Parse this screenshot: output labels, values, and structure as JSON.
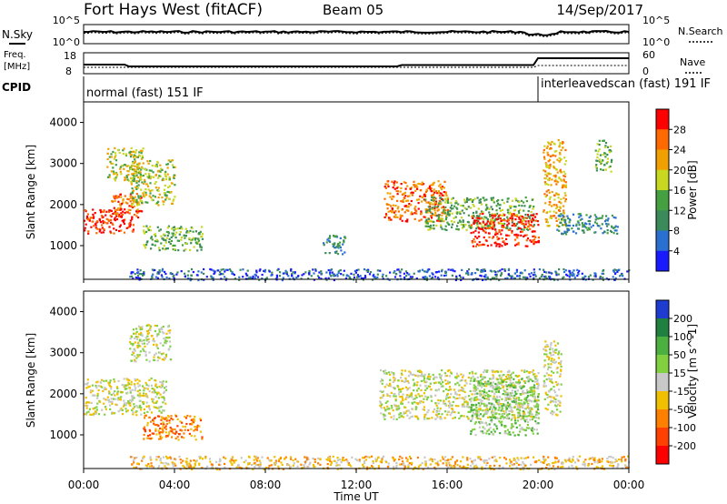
{
  "header": {
    "title": "Fort Hays West (fitACF)",
    "beam": "Beam 05",
    "date": "14/Sep/2017"
  },
  "top_strip": {
    "nsky": {
      "left_label": "N.Sky",
      "left_ticks": [
        "10^5",
        "10^0"
      ],
      "right_label": "N.Search",
      "right_ticks": [
        "10^5",
        "10^0"
      ]
    },
    "freq": {
      "left_label_1": "Freq.",
      "left_label_2": "[MHz]",
      "left_ticks": [
        "18",
        "8"
      ],
      "right_label": "Nave",
      "right_ticks": [
        "60",
        "0"
      ]
    },
    "cpid": {
      "label": "CPID",
      "segments": [
        {
          "start_hour": 0,
          "end_hour": 20,
          "text": "normal (fast) 151 IF"
        },
        {
          "start_hour": 20,
          "end_hour": 24,
          "text": "interleavedscan (fast) 191 IF"
        }
      ]
    }
  },
  "x_axis": {
    "label": "Time UT",
    "ticks": [
      "00:00",
      "04:00",
      "08:00",
      "12:00",
      "16:00",
      "20:00",
      "00:00"
    ],
    "range_hours": [
      0,
      24
    ]
  },
  "y_axis": {
    "label": "Slant Range [km]",
    "ticks": [
      "1000",
      "2000",
      "3000",
      "4000"
    ],
    "range": [
      180,
      4500
    ]
  },
  "chart_data": [
    {
      "type": "heatmap",
      "title": "",
      "xlabel": "",
      "ylabel": "Slant Range [km]",
      "xlim": [
        0,
        24
      ],
      "ylim": [
        180,
        4500
      ],
      "colorbar": {
        "label": "Power [dB]",
        "ticks": [
          "4",
          "8",
          "12",
          "16",
          "20",
          "24",
          "28"
        ],
        "colors": [
          "#1a1aff",
          "#2a70d0",
          "#3a8a5a",
          "#44a040",
          "#c8d820",
          "#f0a000",
          "#ff6a00",
          "#ff0000"
        ]
      },
      "regions": [
        {
          "x": [
            0.0,
            2.2
          ],
          "y": [
            1300,
            1900
          ],
          "level": 7
        },
        {
          "x": [
            1.2,
            2.6
          ],
          "y": [
            1700,
            2300
          ],
          "level": 6
        },
        {
          "x": [
            1.0,
            2.6
          ],
          "y": [
            2600,
            3400
          ],
          "level": 4
        },
        {
          "x": [
            2.0,
            4.0
          ],
          "y": [
            2000,
            3100
          ],
          "level": 4
        },
        {
          "x": [
            2.6,
            5.2
          ],
          "y": [
            900,
            1500
          ],
          "level": 3
        },
        {
          "x": [
            10.5,
            11.5
          ],
          "y": [
            800,
            1300
          ],
          "level": 2
        },
        {
          "x": [
            13.2,
            16.0
          ],
          "y": [
            1600,
            2600
          ],
          "level": 6
        },
        {
          "x": [
            15.0,
            19.8
          ],
          "y": [
            1400,
            2200
          ],
          "level": 3
        },
        {
          "x": [
            17.0,
            20.0
          ],
          "y": [
            1000,
            1800
          ],
          "level": 7
        },
        {
          "x": [
            20.2,
            21.2
          ],
          "y": [
            1500,
            3600
          ],
          "level": 5
        },
        {
          "x": [
            20.8,
            23.5
          ],
          "y": [
            1300,
            1800
          ],
          "level": 2
        },
        {
          "x": [
            22.5,
            23.2
          ],
          "y": [
            2800,
            3600
          ],
          "level": 3
        },
        {
          "x": [
            2.0,
            24.0
          ],
          "y": [
            180,
            450
          ],
          "level": 1
        }
      ]
    },
    {
      "type": "heatmap",
      "title": "",
      "xlabel": "Time UT",
      "ylabel": "Slant Range [km]",
      "xlim": [
        0,
        24
      ],
      "ylim": [
        180,
        4500
      ],
      "colorbar": {
        "label": "Velocity [m s^-1]",
        "ticks": [
          "200",
          "100",
          "50",
          "15",
          "-15",
          "-50",
          "-100",
          "-200"
        ],
        "colors": [
          "#1e3cd0",
          "#1f8040",
          "#4cb040",
          "#80d040",
          "#c8c8c8",
          "#f0c000",
          "#ff8000",
          "#ff4000",
          "#ff0000"
        ]
      },
      "regions": [
        {
          "x": [
            0.0,
            3.6
          ],
          "y": [
            1500,
            2400
          ],
          "level": 4
        },
        {
          "x": [
            2.0,
            3.8
          ],
          "y": [
            2800,
            3700
          ],
          "level": 4
        },
        {
          "x": [
            2.6,
            5.2
          ],
          "y": [
            900,
            1500
          ],
          "level": 6
        },
        {
          "x": [
            13.0,
            20.0
          ],
          "y": [
            1400,
            2600
          ],
          "level": 4
        },
        {
          "x": [
            17.0,
            20.0
          ],
          "y": [
            1000,
            2400
          ],
          "level": 3
        },
        {
          "x": [
            20.2,
            21.0
          ],
          "y": [
            1500,
            3300
          ],
          "level": 4
        },
        {
          "x": [
            2.0,
            24.0
          ],
          "y": [
            180,
            500
          ],
          "level": 5
        }
      ]
    }
  ]
}
